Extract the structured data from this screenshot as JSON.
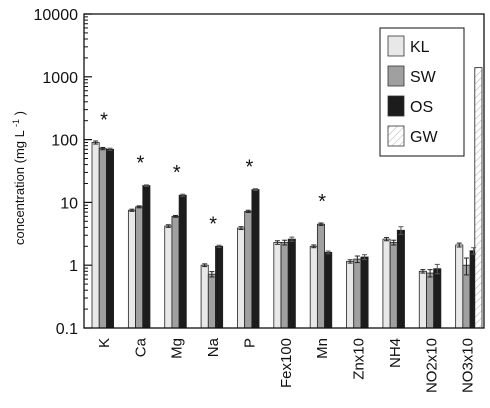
{
  "chart_data": {
    "type": "bar",
    "y_scale": "log",
    "ylim": [
      0.1,
      10000
    ],
    "ylabel": "concentration (mg L",
    "ylabel_superscript": "-1",
    "ylabel_suffix": ")",
    "yticks": [
      "0.1",
      "1",
      "10",
      "100",
      "1000",
      "10000"
    ],
    "ytick_values": [
      0.1,
      1,
      10,
      100,
      1000,
      10000
    ],
    "categories": [
      "K",
      "Ca",
      "Mg",
      "Na",
      "P",
      "Fex100",
      "Mn",
      "Znx10",
      "NH4",
      "NO2x10",
      "NO3x10"
    ],
    "significance_marker": "*",
    "significant": [
      true,
      true,
      true,
      true,
      true,
      false,
      true,
      false,
      false,
      false,
      false
    ],
    "legend_position": "top-right",
    "series": [
      {
        "name": "KL",
        "color": "#e8e8e8",
        "pattern": "solid",
        "values": [
          90,
          7.5,
          4.2,
          1.0,
          3.9,
          2.3,
          2.0,
          1.15,
          2.6,
          0.8,
          2.1
        ],
        "errors": [
          5,
          0.3,
          0.2,
          0.05,
          0.2,
          0.15,
          0.1,
          0.07,
          0.15,
          0.05,
          0.15
        ]
      },
      {
        "name": "SW",
        "color": "#a0a0a0",
        "pattern": "solid",
        "values": [
          72,
          8.5,
          6.0,
          0.72,
          7.2,
          2.3,
          4.5,
          1.25,
          2.3,
          0.75,
          1.0
        ],
        "errors": [
          3,
          0.3,
          0.2,
          0.07,
          0.3,
          0.2,
          0.2,
          0.15,
          0.2,
          0.1,
          0.3
        ]
      },
      {
        "name": "OS",
        "color": "#1c1c1c",
        "pattern": "solid",
        "values": [
          70,
          18.5,
          13,
          2.0,
          16,
          2.6,
          1.6,
          1.35,
          3.6,
          0.88,
          1.7
        ],
        "errors": [
          3,
          0.5,
          0.5,
          0.08,
          0.5,
          0.2,
          0.08,
          0.12,
          0.5,
          0.15,
          0.2
        ]
      },
      {
        "name": "GW",
        "color": "#ffffff",
        "pattern": "hatched",
        "values": [
          null,
          null,
          null,
          null,
          null,
          null,
          null,
          null,
          null,
          null,
          1400
        ],
        "errors": [
          null,
          null,
          null,
          null,
          null,
          null,
          null,
          null,
          null,
          null,
          null
        ]
      }
    ]
  }
}
